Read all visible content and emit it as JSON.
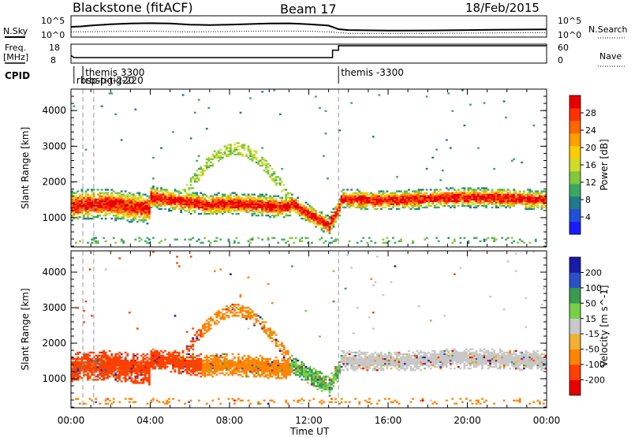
{
  "header": {
    "station": "Blackstone (fitACF)",
    "beam": "Beam 17",
    "date": "18/Feb/2015"
  },
  "summary_labels": {
    "nsky": "N.Sky",
    "nsearch": "N.Search",
    "freq_line1": "Freq.",
    "freq_line2": "[MHz]",
    "nave": "Nave",
    "cpid": "CPID"
  },
  "summary_ticks": {
    "noise_left_top": "10^5",
    "noise_left_bottom": "10^0",
    "noise_right_top": "10^5",
    "noise_right_bottom": "10^0",
    "freq_top": "18",
    "freq_bottom": "8",
    "nave_top": "60",
    "nave_bottom": "0"
  },
  "cpid_entries": [
    {
      "label": "themis 3300",
      "time": 0.6,
      "row": 0
    },
    {
      "label": "rbsp-tig-220",
      "time": 0.15,
      "row": 1
    },
    {
      "label": "rbsp-tig-220",
      "time": 0.6,
      "row": 1
    },
    {
      "label": "themis -3300",
      "time": 13.5,
      "row": 0
    }
  ],
  "noise_data": {
    "sky_level": [
      [
        0,
        0.48
      ],
      [
        0.5,
        0.5
      ],
      [
        1,
        0.55
      ],
      [
        2,
        0.62
      ],
      [
        3,
        0.66
      ],
      [
        4,
        0.68
      ],
      [
        5,
        0.66
      ],
      [
        6,
        0.6
      ],
      [
        7,
        0.58
      ],
      [
        8,
        0.6
      ],
      [
        9,
        0.63
      ],
      [
        10,
        0.66
      ],
      [
        11,
        0.67
      ],
      [
        12,
        0.62
      ],
      [
        13,
        0.55
      ],
      [
        13.5,
        0.35
      ],
      [
        14,
        0.3
      ],
      [
        16,
        0.27
      ],
      [
        18,
        0.28
      ],
      [
        20,
        0.3
      ],
      [
        22,
        0.32
      ],
      [
        24,
        0.34
      ]
    ],
    "search_level": [
      [
        0,
        0.2
      ],
      [
        2,
        0.22
      ],
      [
        4,
        0.24
      ],
      [
        6,
        0.2
      ],
      [
        8,
        0.22
      ],
      [
        10,
        0.25
      ],
      [
        12,
        0.24
      ],
      [
        13,
        0.2
      ],
      [
        14,
        0.12
      ],
      [
        18,
        0.12
      ],
      [
        24,
        0.16
      ]
    ],
    "freq_level": [
      [
        0,
        0.38
      ],
      [
        0.15,
        0.25
      ],
      [
        13.2,
        0.25
      ],
      [
        13.2,
        0.72
      ],
      [
        13.5,
        0.72
      ],
      [
        13.5,
        1.0
      ],
      [
        24,
        1.0
      ]
    ]
  },
  "chart_data": [
    {
      "type": "heatmap",
      "panel": "power",
      "ylabel": "Slant Range [km]",
      "yticks": [
        "1000",
        "2000",
        "3000",
        "4000"
      ],
      "ylim": [
        180,
        4600
      ],
      "colorbar_title": "Power [dB]",
      "colorbar_ticks": [
        "4",
        "8",
        "12",
        "16",
        "20",
        "24",
        "28"
      ],
      "colorbar_range": [
        0,
        32
      ],
      "palette": [
        "#1a1aff",
        "#2050d8",
        "#207a8a",
        "#3aa860",
        "#80c83c",
        "#d0dc28",
        "#ffcc00",
        "#ffa000",
        "#ff6800",
        "#ff3000",
        "#e80000"
      ],
      "gate_height_km": 45,
      "cell_minutes": 6,
      "seed": 17
    },
    {
      "type": "heatmap",
      "panel": "velocity",
      "ylabel": "Slant Range [km]",
      "yticks": [
        "1000",
        "2000",
        "3000",
        "4000"
      ],
      "ylim": [
        180,
        4600
      ],
      "colorbar_title": "Velocity [m s^-1]",
      "colorbar_ticks": [
        "-200",
        "-100",
        "-50",
        "-15",
        "15",
        "50",
        "100",
        "200"
      ],
      "colorbar_range": [
        -250,
        250
      ],
      "palette": [
        "#e80000",
        "#ff4000",
        "#ff8400",
        "#f0b030",
        "#c8c8c8",
        "#78d048",
        "#3a9a50",
        "#2a50c8",
        "#1a1aa8"
      ],
      "gate_height_km": 45,
      "cell_minutes": 6,
      "seed": 29
    }
  ],
  "time_axis": {
    "xlabel": "Time UT",
    "range_hours": [
      0,
      24
    ],
    "tick_labels": [
      "00:00",
      "04:00",
      "08:00",
      "12:00",
      "16:00",
      "20:00",
      "00:00"
    ]
  }
}
